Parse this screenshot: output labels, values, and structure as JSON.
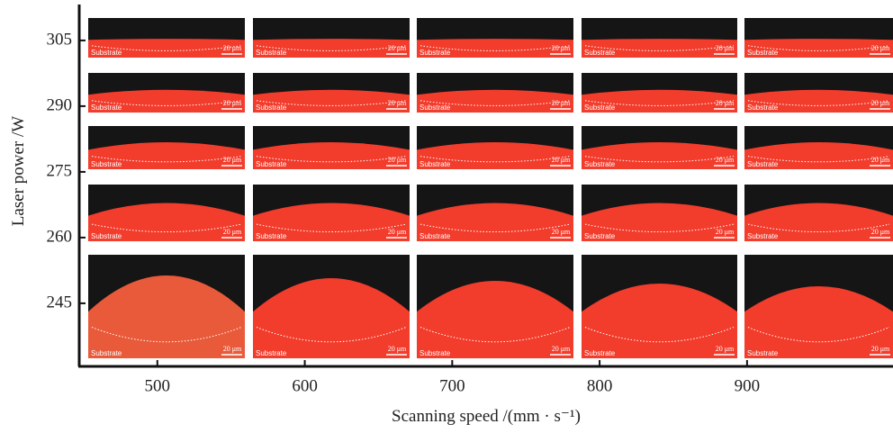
{
  "chart_data": {
    "type": "image-grid",
    "xlabel": "Scanning speed /(mm · s⁻¹)",
    "ylabel": "Laser power /W",
    "xlim": [
      447,
      999
    ],
    "xticks": [
      500,
      600,
      700,
      800,
      900
    ],
    "ylim": [
      230.6,
      313.2
    ],
    "yticks": [
      305,
      290,
      275,
      260,
      245
    ],
    "panel_label": "Substrate",
    "scale_bar": "20 μm"
  }
}
